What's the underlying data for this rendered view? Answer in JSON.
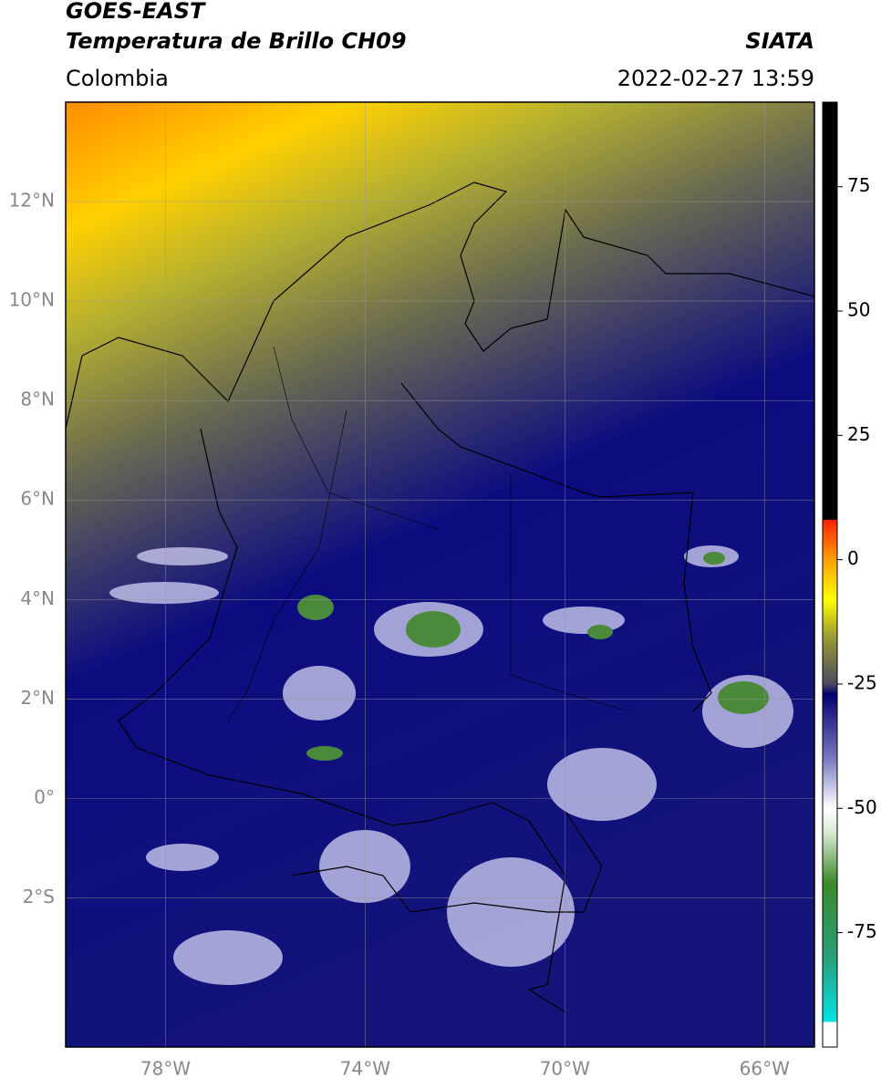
{
  "header": {
    "title": "GOES-EAST",
    "subtitle": "Temperatura de Brillo CH09",
    "source": "SIATA",
    "region": "Colombia",
    "datetime": "2022-02-27 13:59"
  },
  "map": {
    "lonlim": [
      -80,
      -65
    ],
    "latlim": [
      -5,
      14
    ],
    "lonticks": [
      {
        "value": -78,
        "label": "78°W"
      },
      {
        "value": -74,
        "label": "74°W"
      },
      {
        "value": -70,
        "label": "70°W"
      },
      {
        "value": -66,
        "label": "66°W"
      }
    ],
    "latticks": [
      {
        "value": 12,
        "label": "12°N"
      },
      {
        "value": 10,
        "label": "10°N"
      },
      {
        "value": 8,
        "label": "8°N"
      },
      {
        "value": 6,
        "label": "6°N"
      },
      {
        "value": 4,
        "label": "4°N"
      },
      {
        "value": 2,
        "label": "2°N"
      },
      {
        "value": 0,
        "label": "0°"
      },
      {
        "value": -2,
        "label": "2°S"
      }
    ],
    "grid": true
  },
  "colorbar": {
    "lim": [
      -98,
      92
    ],
    "ticks": [
      75,
      50,
      25,
      0,
      -25,
      -50,
      -75
    ],
    "colors": [
      {
        "value": -98,
        "color": "#ffffff"
      },
      {
        "value": -93,
        "color": "#ffffff"
      },
      {
        "value": -93,
        "color": "#00e5e5"
      },
      {
        "value": -80,
        "color": "#2a9e7a"
      },
      {
        "value": -65,
        "color": "#3a8a2a"
      },
      {
        "value": -55,
        "color": "#d8e8d0"
      },
      {
        "value": -50,
        "color": "#ffffff"
      },
      {
        "value": -40,
        "color": "#7a7ac0"
      },
      {
        "value": -27,
        "color": "#000070"
      },
      {
        "value": -25,
        "color": "#4a4a60"
      },
      {
        "value": -15,
        "color": "#a0a030"
      },
      {
        "value": -8,
        "color": "#ffff00"
      },
      {
        "value": 0,
        "color": "#ffa000"
      },
      {
        "value": 8,
        "color": "#ff2000"
      },
      {
        "value": 8,
        "color": "#000000"
      },
      {
        "value": 92,
        "color": "#000000"
      }
    ]
  }
}
